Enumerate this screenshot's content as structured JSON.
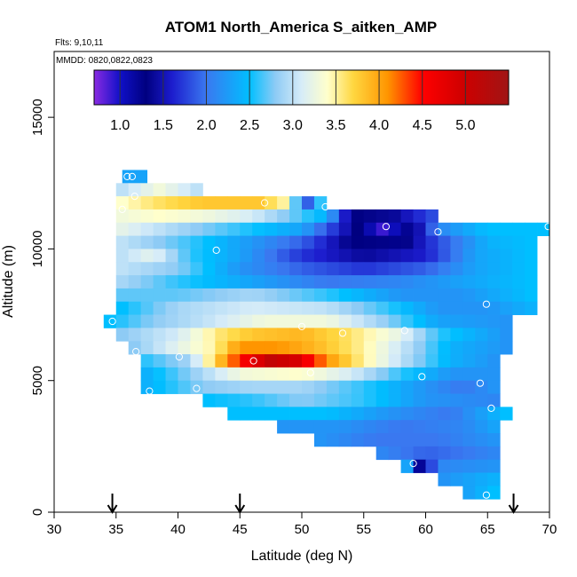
{
  "chart_data": {
    "type": "heatmap",
    "title": "ATOM1 North_America S_aitken_AMP",
    "flights_text": "Flts: 9,10,11",
    "dates_text": "MMDD: 0820,0822,0823",
    "xlabel": "Latitude (deg N)",
    "ylabel": "Altitude (m)",
    "xlim": [
      30,
      70
    ],
    "ylim": [
      0,
      17500
    ],
    "xticks": [
      "30",
      "35",
      "40",
      "45",
      "50",
      "55",
      "60",
      "65",
      "70"
    ],
    "yticks": [
      "0",
      "5000",
      "10000",
      "15000"
    ],
    "colorbar": {
      "range": [
        0.7,
        5.5
      ],
      "tick_values": [
        1.0,
        1.5,
        2.0,
        2.5,
        3.0,
        3.5,
        4.0,
        4.5,
        5.0
      ],
      "tick_labels": [
        "1.0",
        "1.5",
        "2.0",
        "2.5",
        "3.0",
        "3.5",
        "4.0",
        "4.5",
        "5.0"
      ],
      "color_stops": [
        {
          "v": 0.7,
          "c": "#8a2be2"
        },
        {
          "v": 1.0,
          "c": "#1010c8"
        },
        {
          "v": 1.3,
          "c": "#000080"
        },
        {
          "v": 1.6,
          "c": "#1c1ccd"
        },
        {
          "v": 2.0,
          "c": "#3a78f0"
        },
        {
          "v": 2.5,
          "c": "#00bfff"
        },
        {
          "v": 2.8,
          "c": "#8ecbf5"
        },
        {
          "v": 3.1,
          "c": "#d6ecf8"
        },
        {
          "v": 3.4,
          "c": "#ffffcc"
        },
        {
          "v": 3.7,
          "c": "#ffd740"
        },
        {
          "v": 4.1,
          "c": "#ff9500"
        },
        {
          "v": 4.5,
          "c": "#ff0000"
        },
        {
          "v": 5.0,
          "c": "#cc0000"
        },
        {
          "v": 5.5,
          "c": "#a01515"
        }
      ]
    },
    "arrow_latitudes": [
      34.7,
      45.0,
      67.1
    ],
    "grid_cell": {
      "dlat": 1.0,
      "dalt": 500
    },
    "rows": [
      {
        "alt": 12750,
        "lat0": 35.5,
        "lat1": 37.0,
        "kf": [
          {
            "lat": 36.0,
            "v": 2.3
          }
        ]
      },
      {
        "alt": 12250,
        "lat0": 35.0,
        "lat1": 42.0,
        "kf": [
          {
            "lat": 35.5,
            "v": 3.0
          },
          {
            "lat": 38.5,
            "v": 3.3
          },
          {
            "lat": 41.5,
            "v": 3.0
          }
        ]
      },
      {
        "alt": 11750,
        "lat0": 35.0,
        "lat1": 52.0,
        "kf": [
          {
            "lat": 35.5,
            "v": 3.4
          },
          {
            "lat": 38.0,
            "v": 3.6
          },
          {
            "lat": 42.0,
            "v": 3.8
          },
          {
            "lat": 46.5,
            "v": 3.8
          },
          {
            "lat": 48.5,
            "v": 3.5
          },
          {
            "lat": 50.5,
            "v": 1.9
          },
          {
            "lat": 51.5,
            "v": 2.6
          }
        ]
      },
      {
        "alt": 11250,
        "lat0": 35.0,
        "lat1": 61.0,
        "kf": [
          {
            "lat": 35.5,
            "v": 3.3
          },
          {
            "lat": 38.5,
            "v": 3.4
          },
          {
            "lat": 42.0,
            "v": 3.3
          },
          {
            "lat": 46.0,
            "v": 3.1
          },
          {
            "lat": 49.5,
            "v": 2.7
          },
          {
            "lat": 52.0,
            "v": 2.4
          },
          {
            "lat": 54.0,
            "v": 1.3
          },
          {
            "lat": 57.5,
            "v": 1.4
          },
          {
            "lat": 60.5,
            "v": 1.8
          }
        ]
      },
      {
        "alt": 10750,
        "lat0": 35.0,
        "lat1": 70.0,
        "kf": [
          {
            "lat": 35.5,
            "v": 3.2
          },
          {
            "lat": 40.0,
            "v": 2.9
          },
          {
            "lat": 45.0,
            "v": 2.6
          },
          {
            "lat": 50.0,
            "v": 2.3
          },
          {
            "lat": 54.0,
            "v": 1.4
          },
          {
            "lat": 56.5,
            "v": 0.9
          },
          {
            "lat": 59.0,
            "v": 1.3
          },
          {
            "lat": 61.0,
            "v": 2.1
          },
          {
            "lat": 65.0,
            "v": 2.5
          },
          {
            "lat": 69.5,
            "v": 2.5
          }
        ]
      },
      {
        "alt": 10250,
        "lat0": 35.0,
        "lat1": 69.0,
        "kf": [
          {
            "lat": 35.5,
            "v": 3.0
          },
          {
            "lat": 40.0,
            "v": 2.7
          },
          {
            "lat": 45.0,
            "v": 2.3
          },
          {
            "lat": 50.0,
            "v": 1.9
          },
          {
            "lat": 54.0,
            "v": 1.3
          },
          {
            "lat": 58.0,
            "v": 1.25
          },
          {
            "lat": 61.0,
            "v": 1.8
          },
          {
            "lat": 65.0,
            "v": 2.4
          },
          {
            "lat": 68.5,
            "v": 2.5
          }
        ]
      },
      {
        "alt": 9750,
        "lat0": 35.0,
        "lat1": 69.0,
        "kf": [
          {
            "lat": 35.5,
            "v": 3.0
          },
          {
            "lat": 38.0,
            "v": 3.2
          },
          {
            "lat": 41.0,
            "v": 2.6
          },
          {
            "lat": 45.0,
            "v": 2.3
          },
          {
            "lat": 50.0,
            "v": 1.7
          },
          {
            "lat": 55.0,
            "v": 1.4
          },
          {
            "lat": 60.0,
            "v": 1.6
          },
          {
            "lat": 64.0,
            "v": 2.3
          },
          {
            "lat": 68.5,
            "v": 2.5
          }
        ]
      },
      {
        "alt": 9250,
        "lat0": 35.0,
        "lat1": 69.0,
        "kf": [
          {
            "lat": 35.5,
            "v": 3.0
          },
          {
            "lat": 40.0,
            "v": 2.8
          },
          {
            "lat": 45.0,
            "v": 2.2
          },
          {
            "lat": 50.0,
            "v": 1.9
          },
          {
            "lat": 55.0,
            "v": 1.7
          },
          {
            "lat": 60.0,
            "v": 1.9
          },
          {
            "lat": 64.0,
            "v": 2.3
          },
          {
            "lat": 68.5,
            "v": 2.5
          }
        ]
      },
      {
        "alt": 8750,
        "lat0": 35.0,
        "lat1": 69.0,
        "kf": [
          {
            "lat": 35.5,
            "v": 2.9
          },
          {
            "lat": 40.0,
            "v": 2.6
          },
          {
            "lat": 46.0,
            "v": 2.3
          },
          {
            "lat": 52.0,
            "v": 2.0
          },
          {
            "lat": 58.0,
            "v": 2.1
          },
          {
            "lat": 63.0,
            "v": 2.3
          },
          {
            "lat": 68.5,
            "v": 2.5
          }
        ]
      },
      {
        "alt": 8250,
        "lat0": 35.0,
        "lat1": 69.0,
        "kf": [
          {
            "lat": 35.5,
            "v": 2.7
          },
          {
            "lat": 40.0,
            "v": 2.7
          },
          {
            "lat": 46.0,
            "v": 2.9
          },
          {
            "lat": 52.0,
            "v": 2.6
          },
          {
            "lat": 58.0,
            "v": 2.2
          },
          {
            "lat": 63.0,
            "v": 2.2
          },
          {
            "lat": 68.5,
            "v": 2.5
          }
        ]
      },
      {
        "alt": 7750,
        "lat0": 35.0,
        "lat1": 69.0,
        "kf": [
          {
            "lat": 35.5,
            "v": 2.5
          },
          {
            "lat": 40.0,
            "v": 2.9
          },
          {
            "lat": 46.0,
            "v": 3.1
          },
          {
            "lat": 52.0,
            "v": 3.0
          },
          {
            "lat": 57.0,
            "v": 2.6
          },
          {
            "lat": 61.0,
            "v": 2.2
          },
          {
            "lat": 65.0,
            "v": 2.2
          },
          {
            "lat": 68.5,
            "v": 2.4
          }
        ]
      },
      {
        "alt": 7250,
        "lat0": 34.0,
        "lat1": 67.0,
        "kf": [
          {
            "lat": 34.5,
            "v": 2.5
          },
          {
            "lat": 38.0,
            "v": 2.8
          },
          {
            "lat": 42.0,
            "v": 3.0
          },
          {
            "lat": 47.0,
            "v": 3.3
          },
          {
            "lat": 52.0,
            "v": 3.3
          },
          {
            "lat": 57.0,
            "v": 2.8
          },
          {
            "lat": 61.0,
            "v": 2.3
          },
          {
            "lat": 66.5,
            "v": 2.2
          }
        ]
      },
      {
        "alt": 6750,
        "lat0": 35.0,
        "lat1": 67.0,
        "kf": [
          {
            "lat": 35.5,
            "v": 2.8
          },
          {
            "lat": 40.0,
            "v": 3.1
          },
          {
            "lat": 43.5,
            "v": 3.6
          },
          {
            "lat": 46.0,
            "v": 3.8
          },
          {
            "lat": 50.0,
            "v": 3.9
          },
          {
            "lat": 54.0,
            "v": 3.6
          },
          {
            "lat": 58.0,
            "v": 3.2
          },
          {
            "lat": 61.0,
            "v": 2.6
          },
          {
            "lat": 66.5,
            "v": 2.2
          }
        ]
      },
      {
        "alt": 6250,
        "lat0": 36.0,
        "lat1": 67.0,
        "kf": [
          {
            "lat": 36.5,
            "v": 2.8
          },
          {
            "lat": 40.0,
            "v": 3.2
          },
          {
            "lat": 43.0,
            "v": 3.5
          },
          {
            "lat": 45.0,
            "v": 4.1
          },
          {
            "lat": 48.0,
            "v": 4.1
          },
          {
            "lat": 51.0,
            "v": 3.9
          },
          {
            "lat": 55.0,
            "v": 3.5
          },
          {
            "lat": 59.0,
            "v": 2.9
          },
          {
            "lat": 62.0,
            "v": 2.4
          },
          {
            "lat": 66.5,
            "v": 2.2
          }
        ]
      },
      {
        "alt": 5750,
        "lat0": 37.0,
        "lat1": 66.0,
        "kf": [
          {
            "lat": 37.5,
            "v": 2.6
          },
          {
            "lat": 41.0,
            "v": 2.9
          },
          {
            "lat": 43.5,
            "v": 3.9
          },
          {
            "lat": 45.5,
            "v": 4.6
          },
          {
            "lat": 47.5,
            "v": 5.1
          },
          {
            "lat": 49.5,
            "v": 4.9
          },
          {
            "lat": 52.0,
            "v": 4.1
          },
          {
            "lat": 54.5,
            "v": 3.6
          },
          {
            "lat": 58.0,
            "v": 3.0
          },
          {
            "lat": 62.0,
            "v": 2.4
          },
          {
            "lat": 65.5,
            "v": 2.2
          }
        ]
      },
      {
        "alt": 5250,
        "lat0": 37.0,
        "lat1": 66.0,
        "kf": [
          {
            "lat": 37.5,
            "v": 2.4
          },
          {
            "lat": 41.0,
            "v": 2.8
          },
          {
            "lat": 45.0,
            "v": 3.3
          },
          {
            "lat": 50.0,
            "v": 3.4
          },
          {
            "lat": 54.0,
            "v": 3.1
          },
          {
            "lat": 58.0,
            "v": 2.6
          },
          {
            "lat": 62.0,
            "v": 2.2
          },
          {
            "lat": 65.5,
            "v": 2.2
          }
        ]
      },
      {
        "alt": 4750,
        "lat0": 37.0,
        "lat1": 66.0,
        "kf": [
          {
            "lat": 37.5,
            "v": 2.4
          },
          {
            "lat": 42.0,
            "v": 2.8
          },
          {
            "lat": 46.0,
            "v": 2.9
          },
          {
            "lat": 50.0,
            "v": 2.9
          },
          {
            "lat": 55.0,
            "v": 2.6
          },
          {
            "lat": 60.0,
            "v": 2.2
          },
          {
            "lat": 63.0,
            "v": 2.0
          },
          {
            "lat": 65.5,
            "v": 2.2
          }
        ]
      },
      {
        "alt": 4250,
        "lat0": 42.0,
        "lat1": 66.0,
        "kf": [
          {
            "lat": 42.5,
            "v": 2.5
          },
          {
            "lat": 46.0,
            "v": 2.6
          },
          {
            "lat": 50.0,
            "v": 2.8
          },
          {
            "lat": 55.0,
            "v": 2.6
          },
          {
            "lat": 60.0,
            "v": 2.2
          },
          {
            "lat": 65.5,
            "v": 2.1
          }
        ]
      },
      {
        "alt": 3750,
        "lat0": 44.0,
        "lat1": 67.0,
        "kf": [
          {
            "lat": 44.5,
            "v": 2.5
          },
          {
            "lat": 48.0,
            "v": 2.5
          },
          {
            "lat": 52.0,
            "v": 2.5
          },
          {
            "lat": 57.0,
            "v": 2.2
          },
          {
            "lat": 62.0,
            "v": 2.0
          },
          {
            "lat": 66.5,
            "v": 2.5
          }
        ]
      },
      {
        "alt": 3250,
        "lat0": 48.0,
        "lat1": 66.0,
        "kf": [
          {
            "lat": 48.5,
            "v": 2.2
          },
          {
            "lat": 53.0,
            "v": 2.2
          },
          {
            "lat": 58.0,
            "v": 2.0
          },
          {
            "lat": 63.0,
            "v": 2.1
          },
          {
            "lat": 65.5,
            "v": 2.3
          }
        ]
      },
      {
        "alt": 2750,
        "lat0": 51.0,
        "lat1": 66.0,
        "kf": [
          {
            "lat": 51.5,
            "v": 2.2
          },
          {
            "lat": 56.0,
            "v": 2.0
          },
          {
            "lat": 61.0,
            "v": 2.0
          },
          {
            "lat": 65.5,
            "v": 2.2
          }
        ]
      },
      {
        "alt": 2250,
        "lat0": 56.0,
        "lat1": 66.0,
        "kf": [
          {
            "lat": 56.5,
            "v": 2.1
          },
          {
            "lat": 60.0,
            "v": 1.9
          },
          {
            "lat": 63.0,
            "v": 2.0
          },
          {
            "lat": 65.5,
            "v": 2.1
          }
        ]
      },
      {
        "alt": 1750,
        "lat0": 58.0,
        "lat1": 66.0,
        "kf": [
          {
            "lat": 58.5,
            "v": 2.3
          },
          {
            "lat": 59.5,
            "v": 1.2
          },
          {
            "lat": 61.0,
            "v": 2.1
          },
          {
            "lat": 65.5,
            "v": 2.2
          }
        ]
      },
      {
        "alt": 1250,
        "lat0": 61.0,
        "lat1": 66.0,
        "kf": [
          {
            "lat": 61.5,
            "v": 2.2
          },
          {
            "lat": 65.5,
            "v": 2.4
          }
        ]
      },
      {
        "alt": 750,
        "lat0": 63.0,
        "lat1": 66.0,
        "kf": [
          {
            "lat": 63.5,
            "v": 2.3
          },
          {
            "lat": 65.5,
            "v": 2.5
          }
        ]
      }
    ],
    "circles": [
      {
        "lat": 35.9,
        "alt": 12750
      },
      {
        "lat": 36.3,
        "alt": 12750
      },
      {
        "lat": 36.5,
        "alt": 12000
      },
      {
        "lat": 35.5,
        "alt": 11500
      },
      {
        "lat": 47.0,
        "alt": 11750
      },
      {
        "lat": 51.9,
        "alt": 11600
      },
      {
        "lat": 56.8,
        "alt": 10850
      },
      {
        "lat": 61.0,
        "alt": 10650
      },
      {
        "lat": 69.9,
        "alt": 10850
      },
      {
        "lat": 43.1,
        "alt": 9950
      },
      {
        "lat": 64.9,
        "alt": 7900
      },
      {
        "lat": 34.7,
        "alt": 7250
      },
      {
        "lat": 50.0,
        "alt": 7050
      },
      {
        "lat": 53.3,
        "alt": 6800
      },
      {
        "lat": 58.3,
        "alt": 6900
      },
      {
        "lat": 36.6,
        "alt": 6100
      },
      {
        "lat": 40.1,
        "alt": 5900
      },
      {
        "lat": 46.1,
        "alt": 5750
      },
      {
        "lat": 50.7,
        "alt": 5300
      },
      {
        "lat": 59.7,
        "alt": 5150
      },
      {
        "lat": 64.4,
        "alt": 4900
      },
      {
        "lat": 37.7,
        "alt": 4600
      },
      {
        "lat": 41.5,
        "alt": 4700
      },
      {
        "lat": 65.3,
        "alt": 3950
      },
      {
        "lat": 59.0,
        "alt": 1850
      },
      {
        "lat": 64.9,
        "alt": 650
      }
    ]
  }
}
